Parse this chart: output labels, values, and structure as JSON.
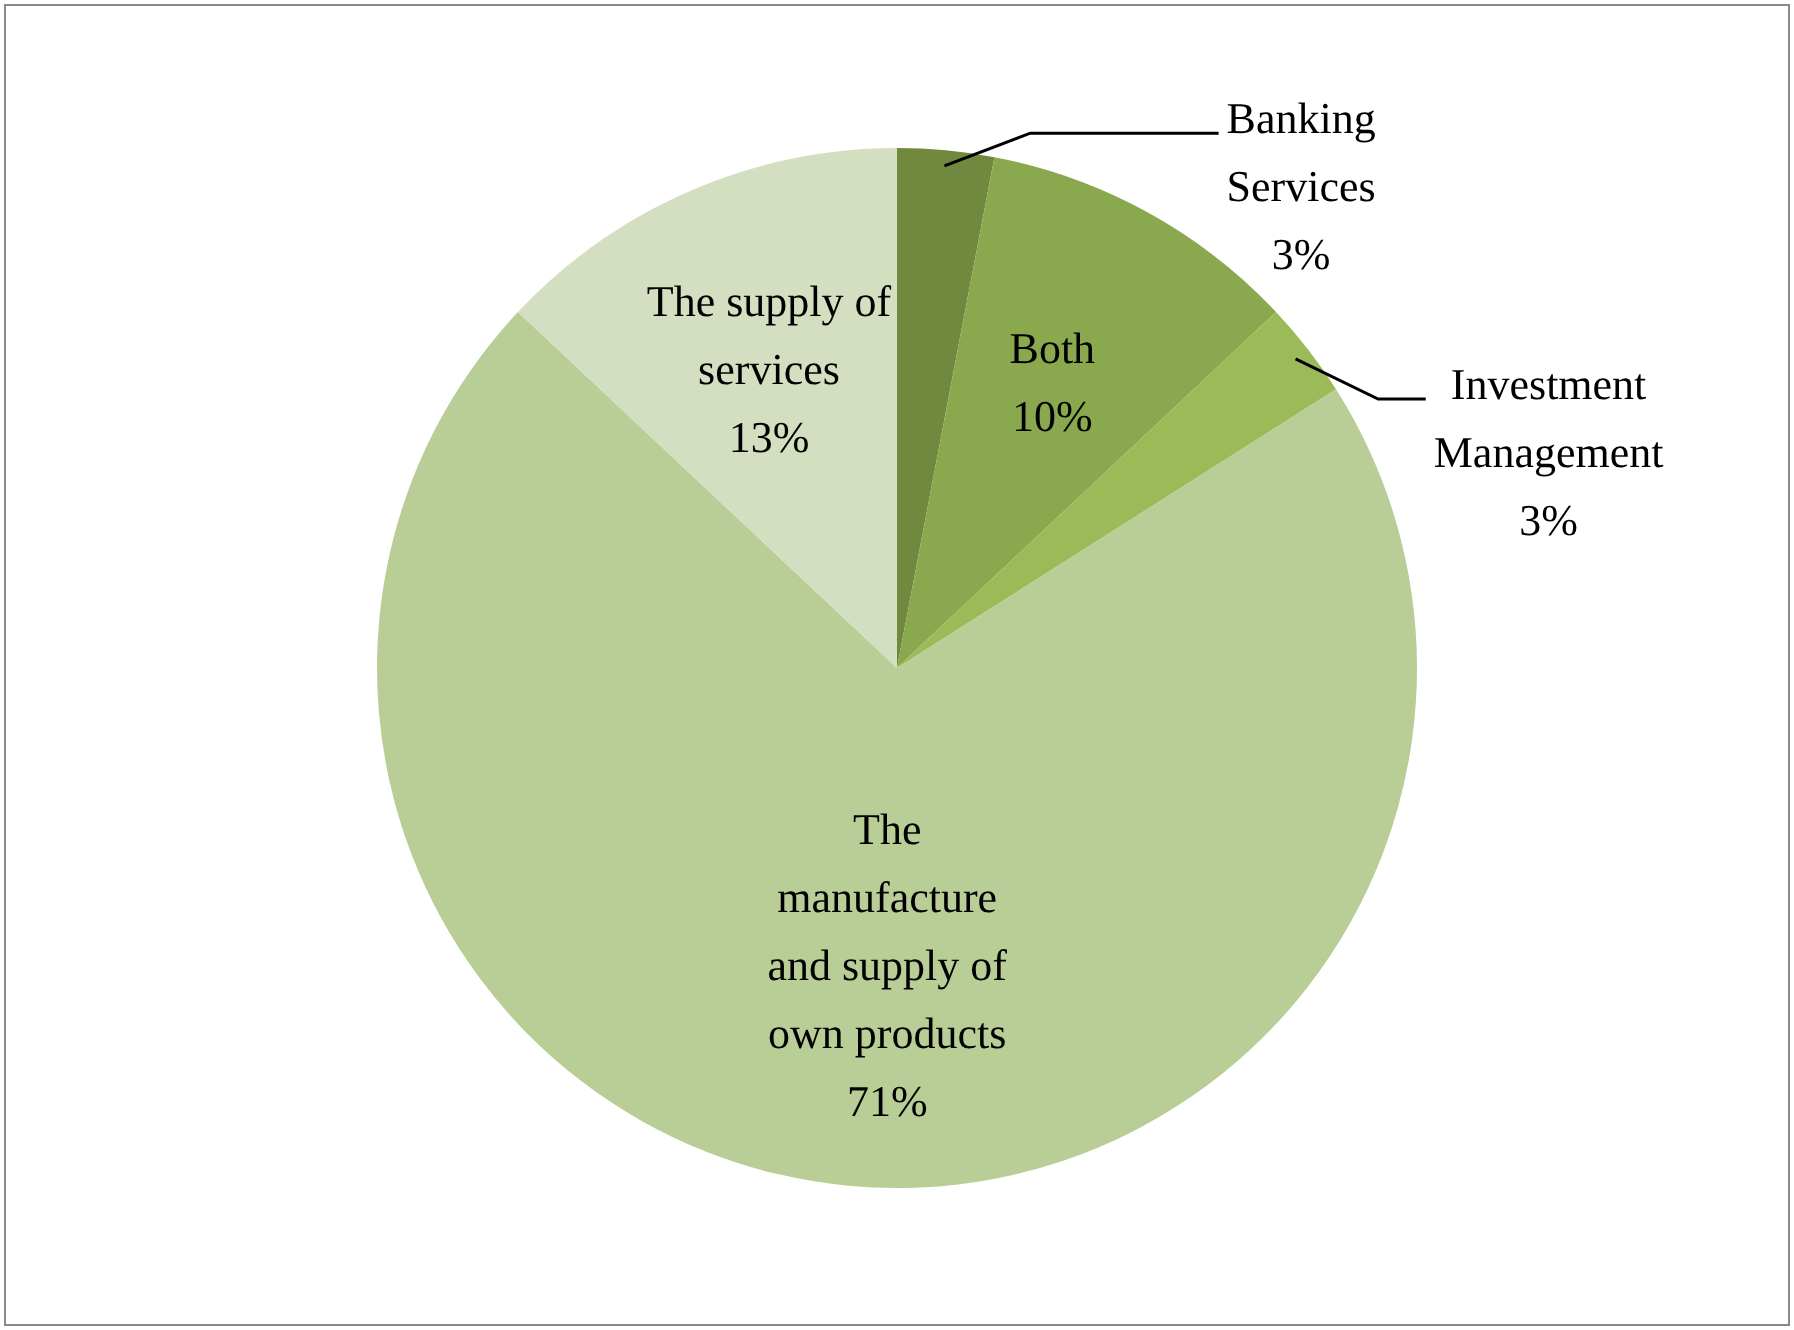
{
  "chart_data": {
    "type": "pie",
    "categories": [
      "Banking Services",
      "Both",
      "Investment Management",
      "The manufacture and supply of own products",
      "The supply of services"
    ],
    "values": [
      3,
      10,
      3,
      71,
      13
    ],
    "colors": [
      "#71893f",
      "#8aa84e",
      "#9bbb59",
      "#b9cd96",
      "#d3dfc0"
    ],
    "value_labels": [
      "3%",
      "10%",
      "3%",
      "71%",
      "13%"
    ],
    "legend": false
  }
}
